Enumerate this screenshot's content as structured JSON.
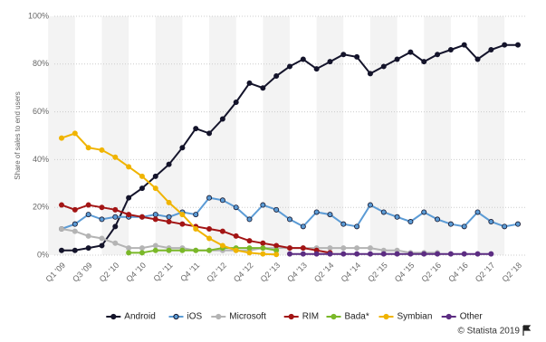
{
  "chart_data": {
    "type": "line",
    "y_label": "Share of sales to end users",
    "categories": [
      "Q1 '09",
      null,
      "Q3 '09",
      null,
      "Q2 '10",
      null,
      "Q4 '10",
      null,
      "Q2 '11",
      null,
      "Q4 '11",
      null,
      "Q2 '12",
      null,
      "Q4 '12",
      null,
      "Q2 '13",
      null,
      "Q4 '13",
      null,
      "Q2 '14",
      null,
      "Q4 '14",
      null,
      "Q2 '15",
      null,
      "Q4 '15",
      null,
      "Q2 '16",
      null,
      "Q4 '16",
      null,
      "Q2 '17",
      null,
      "Q2 '18"
    ],
    "ylim": [
      0,
      100
    ],
    "yticks": [
      {
        "value": 0,
        "label": "0%"
      },
      {
        "value": 20,
        "label": "20%"
      },
      {
        "value": 40,
        "label": "40%"
      },
      {
        "value": 60,
        "label": "60%"
      },
      {
        "value": 80,
        "label": "80%"
      },
      {
        "value": 100,
        "label": "100%"
      }
    ],
    "grid": true,
    "legend": "bottom",
    "series": [
      {
        "name": "Android",
        "color": "#14142b",
        "values": [
          2,
          2,
          3,
          4,
          12,
          24,
          28,
          33,
          38,
          45,
          53,
          51,
          57,
          64,
          72,
          70,
          75,
          79,
          82,
          78,
          81,
          84,
          83,
          76,
          79,
          82,
          85,
          81,
          84,
          86,
          88,
          82,
          86,
          88,
          88
        ]
      },
      {
        "name": "iOS",
        "color": "#5b9bd5",
        "values": [
          11,
          13,
          17,
          15,
          16,
          16,
          16,
          17,
          16,
          18,
          17,
          24,
          23,
          20,
          15,
          21,
          19,
          15,
          12,
          18,
          17,
          13,
          12,
          21,
          18,
          16,
          14,
          18,
          15,
          13,
          12,
          18,
          14,
          12,
          13
        ]
      },
      {
        "name": "Microsoft",
        "color": "#b4b4b4",
        "values": [
          11,
          10,
          8,
          7,
          5,
          3,
          3,
          4,
          3,
          3,
          2,
          2,
          2,
          2,
          2,
          3,
          3,
          3,
          3,
          3,
          3,
          3,
          3,
          3,
          2,
          2,
          1,
          1,
          1,
          null,
          null,
          null,
          null,
          null,
          null
        ]
      },
      {
        "name": "RIM",
        "color": "#a31515",
        "values": [
          21,
          19,
          21,
          20,
          19,
          17,
          16,
          15,
          14,
          13,
          12,
          11,
          10,
          8,
          6,
          5,
          4,
          3,
          3,
          2,
          1,
          null,
          null,
          null,
          null,
          null,
          null,
          null,
          null,
          null,
          null,
          null,
          null,
          null,
          null
        ]
      },
      {
        "name": "Bada*",
        "color": "#7ab829",
        "values": [
          null,
          null,
          null,
          null,
          null,
          1,
          1,
          2,
          2,
          2,
          2,
          2,
          3,
          3,
          3,
          3,
          2,
          null,
          null,
          null,
          null,
          null,
          null,
          null,
          null,
          null,
          null,
          null,
          null,
          null,
          null,
          null,
          null,
          null,
          null
        ]
      },
      {
        "name": "Symbian",
        "color": "#f0b400",
        "values": [
          49,
          51,
          45,
          44,
          41,
          37,
          33,
          28,
          22,
          17,
          11,
          7,
          4,
          2,
          1,
          0.5,
          0.3,
          null,
          null,
          null,
          null,
          null,
          null,
          null,
          null,
          null,
          null,
          null,
          null,
          null,
          null,
          null,
          null,
          null,
          null
        ]
      },
      {
        "name": "Other",
        "color": "#5c2d82",
        "values": [
          null,
          null,
          null,
          null,
          null,
          null,
          null,
          null,
          null,
          null,
          null,
          null,
          null,
          null,
          null,
          null,
          null,
          0.5,
          0.5,
          0.5,
          0.5,
          0.5,
          0.5,
          0.5,
          0.5,
          0.5,
          0.5,
          0.5,
          0.5,
          0.5,
          0.5,
          0.5,
          0.5,
          null,
          null
        ]
      }
    ]
  },
  "source": "© Statista 2019"
}
